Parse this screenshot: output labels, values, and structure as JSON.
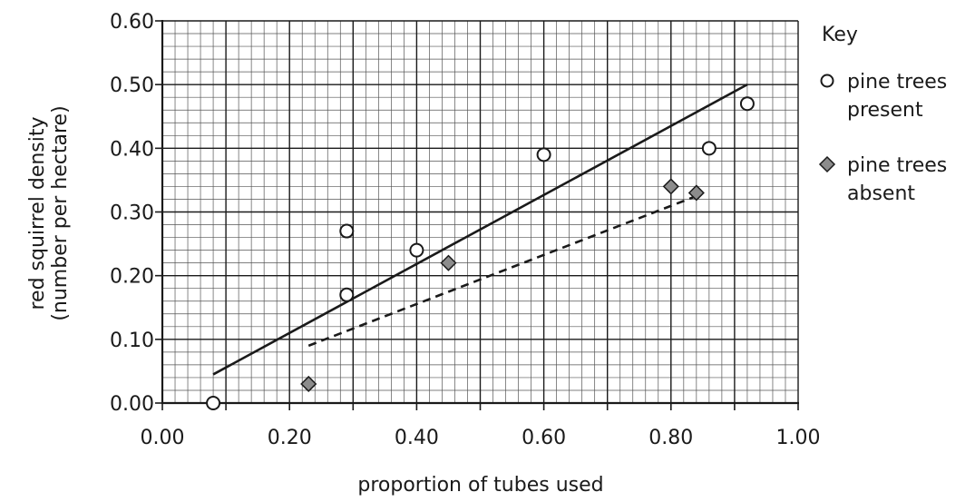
{
  "chart_data": {
    "type": "scatter",
    "title": "",
    "xlabel": "proportion of tubes used",
    "ylabel_lines": [
      "red squirrel density",
      "(number per hectare)"
    ],
    "xlim": [
      0,
      1
    ],
    "ylim": [
      0,
      0.6
    ],
    "x_ticks": [
      "0.00",
      "0.20",
      "0.40",
      "0.60",
      "0.80",
      "1.00"
    ],
    "y_ticks": [
      "0.00",
      "0.10",
      "0.20",
      "0.30",
      "0.40",
      "0.50",
      "0.60"
    ],
    "grid": true,
    "legend": {
      "title": "Key",
      "position": "right",
      "entries": [
        {
          "marker": "circle",
          "lines": [
            "pine trees",
            "present"
          ]
        },
        {
          "marker": "diamond",
          "lines": [
            "pine trees",
            "absent"
          ]
        }
      ]
    },
    "series": [
      {
        "marker": "circle",
        "fill": "#ffffff",
        "points": [
          {
            "x": 0.08,
            "y": 0.0
          },
          {
            "x": 0.29,
            "y": 0.27
          },
          {
            "x": 0.29,
            "y": 0.17
          },
          {
            "x": 0.4,
            "y": 0.24
          },
          {
            "x": 0.6,
            "y": 0.39
          },
          {
            "x": 0.86,
            "y": 0.4
          },
          {
            "x": 0.92,
            "y": 0.47
          }
        ],
        "trendline": {
          "style": "solid",
          "from": {
            "x": 0.08,
            "y": 0.045
          },
          "to": {
            "x": 0.92,
            "y": 0.5
          }
        }
      },
      {
        "marker": "diamond",
        "fill": "#8c8c8c",
        "points": [
          {
            "x": 0.23,
            "y": 0.03
          },
          {
            "x": 0.45,
            "y": 0.22
          },
          {
            "x": 0.8,
            "y": 0.34
          },
          {
            "x": 0.84,
            "y": 0.33
          }
        ],
        "trendline": {
          "style": "dashed",
          "from": {
            "x": 0.23,
            "y": 0.09
          },
          "to": {
            "x": 0.84,
            "y": 0.325
          }
        }
      }
    ]
  }
}
